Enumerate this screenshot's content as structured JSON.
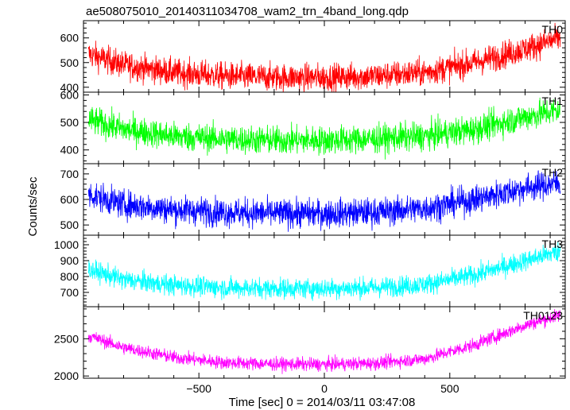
{
  "chart_data": {
    "type": "line",
    "title": "ae508075010_20140311034708_wam2_trn_4band_long.qdp",
    "ylabel": "Counts/sec",
    "xlabel": "Time [sec] 0 = 2014/03/11 03:47:08",
    "xlim": [
      -960,
      960
    ],
    "x_ticks": [
      -500,
      0,
      500
    ],
    "x_tick_labels": [
      "−500",
      "0",
      "500"
    ],
    "panels": [
      {
        "name": "TH0",
        "color": "#ff0000",
        "ylim": [
          380,
          670
        ],
        "y_ticks": [
          400,
          500,
          600
        ],
        "y_tick_labels": [
          "400",
          "500",
          "600"
        ],
        "trend_x": [
          -940,
          -800,
          -600,
          -400,
          -200,
          0,
          200,
          400,
          600,
          800,
          940
        ],
        "trend_y": [
          535,
          490,
          460,
          445,
          440,
          440,
          445,
          460,
          500,
          555,
          600
        ],
        "noise": 28
      },
      {
        "name": "TH1",
        "color": "#00ff00",
        "ylim": [
          350,
          610
        ],
        "y_ticks": [
          400,
          500,
          600
        ],
        "y_tick_labels": [
          "400",
          "500",
          "600"
        ],
        "trend_x": [
          -940,
          -800,
          -600,
          -400,
          -200,
          0,
          200,
          400,
          600,
          800,
          940
        ],
        "trend_y": [
          510,
          475,
          450,
          440,
          435,
          435,
          440,
          450,
          475,
          520,
          545
        ],
        "noise": 26
      },
      {
        "name": "TH2",
        "color": "#0000ff",
        "ylim": [
          460,
          740
        ],
        "y_ticks": [
          500,
          600,
          700
        ],
        "y_tick_labels": [
          "500",
          "600",
          "700"
        ],
        "trend_x": [
          -940,
          -800,
          -600,
          -400,
          -200,
          0,
          200,
          400,
          600,
          800,
          940
        ],
        "trend_y": [
          620,
          580,
          560,
          550,
          545,
          545,
          550,
          565,
          600,
          645,
          665
        ],
        "noise": 28
      },
      {
        "name": "TH3",
        "color": "#00ffff",
        "ylim": [
          610,
          1060
        ],
        "y_ticks": [
          700,
          800,
          900,
          1000
        ],
        "y_tick_labels": [
          "700",
          "800",
          "900",
          "1000"
        ],
        "trend_x": [
          -940,
          -800,
          -600,
          -400,
          -200,
          0,
          200,
          400,
          600,
          800,
          940
        ],
        "trend_y": [
          845,
          780,
          745,
          730,
          725,
          725,
          730,
          750,
          810,
          900,
          960
        ],
        "noise": 32
      },
      {
        "name": "TH0123",
        "color": "#ff00ff",
        "ylim": [
          1970,
          2930
        ],
        "y_ticks": [
          2000,
          2500
        ],
        "y_tick_labels": [
          "2000",
          "2500"
        ],
        "trend_x": [
          -940,
          -800,
          -600,
          -400,
          -200,
          0,
          200,
          400,
          600,
          800,
          940
        ],
        "trend_y": [
          2540,
          2380,
          2250,
          2180,
          2160,
          2155,
          2170,
          2230,
          2420,
          2680,
          2820
        ],
        "noise": 45
      }
    ]
  }
}
